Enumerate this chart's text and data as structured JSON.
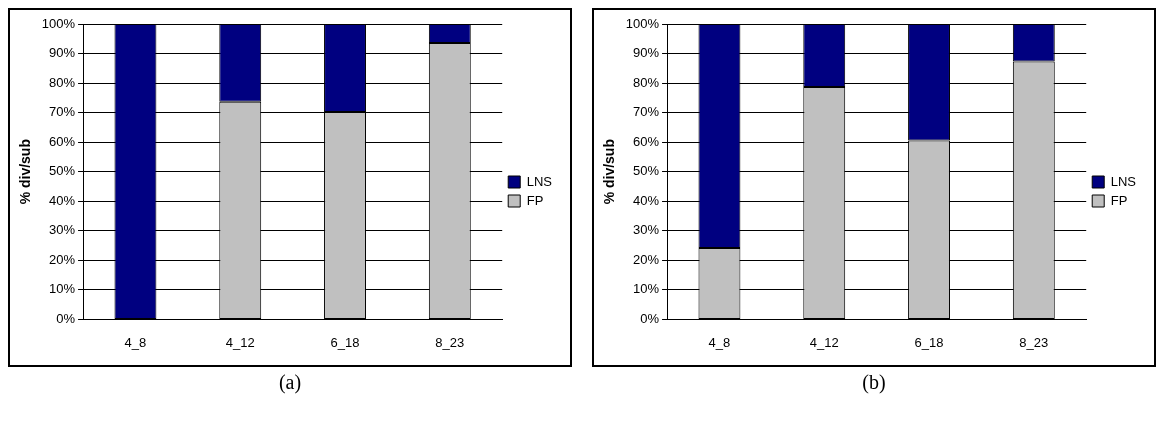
{
  "chart_data": [
    {
      "type": "bar",
      "title": "(a)",
      "ylabel": "% div/sub",
      "categories": [
        "4_8",
        "4_12",
        "6_18",
        "8_23"
      ],
      "stacked": true,
      "legend": "right",
      "grid": "y",
      "ylim": [
        0,
        100
      ],
      "yticks": [
        {
          "value": 0,
          "label": "0%"
        },
        {
          "value": 10,
          "label": "10%"
        },
        {
          "value": 20,
          "label": "20%"
        },
        {
          "value": 30,
          "label": "30%"
        },
        {
          "value": 40,
          "label": "40%"
        },
        {
          "value": 50,
          "label": "50%"
        },
        {
          "value": 60,
          "label": "60%"
        },
        {
          "value": 70,
          "label": "70%"
        },
        {
          "value": 80,
          "label": "80%"
        },
        {
          "value": 90,
          "label": "90%"
        },
        {
          "value": 100,
          "label": "100%"
        }
      ],
      "series": [
        {
          "name": "FP",
          "color": "#c0c0c0",
          "values": [
            0,
            73.7,
            70.2,
            93.6
          ]
        },
        {
          "name": "LNS",
          "color": "#000080",
          "values": [
            100,
            26.3,
            29.8,
            6.4
          ]
        }
      ]
    },
    {
      "type": "bar",
      "title": "(b)",
      "ylabel": "% div/sub",
      "categories": [
        "4_8",
        "4_12",
        "6_18",
        "8_23"
      ],
      "stacked": true,
      "legend": "right",
      "grid": "y",
      "ylim": [
        0,
        100
      ],
      "yticks": [
        {
          "value": 0,
          "label": "0%"
        },
        {
          "value": 10,
          "label": "10%"
        },
        {
          "value": 20,
          "label": "20%"
        },
        {
          "value": 30,
          "label": "30%"
        },
        {
          "value": 40,
          "label": "40%"
        },
        {
          "value": 50,
          "label": "50%"
        },
        {
          "value": 60,
          "label": "60%"
        },
        {
          "value": 70,
          "label": "70%"
        },
        {
          "value": 80,
          "label": "80%"
        },
        {
          "value": 90,
          "label": "90%"
        },
        {
          "value": 100,
          "label": "100%"
        }
      ],
      "series": [
        {
          "name": "FP",
          "color": "#c0c0c0",
          "values": [
            24.2,
            78.7,
            60.6,
            87.3
          ]
        },
        {
          "name": "LNS",
          "color": "#000080",
          "values": [
            75.8,
            21.3,
            39.4,
            12.7
          ]
        }
      ]
    }
  ]
}
